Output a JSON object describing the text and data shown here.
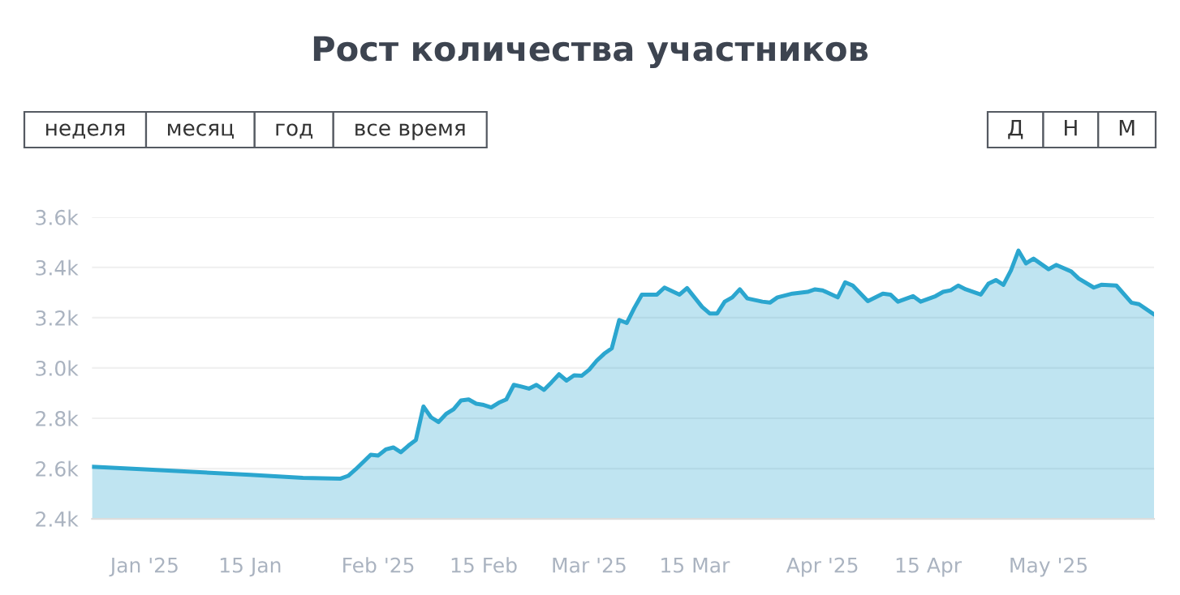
{
  "chart_data": {
    "type": "area",
    "title": "Рост количества участников",
    "annotations": [
      "неделя",
      "месяц",
      "год",
      "все время",
      "Д",
      "Н",
      "М"
    ],
    "x": [
      "2024-12-25",
      "2025-01-01",
      "2025-01-15",
      "2025-01-22",
      "2025-01-27",
      "2025-01-28",
      "2025-01-29",
      "2025-01-31",
      "2025-02-01",
      "2025-02-02",
      "2025-02-03",
      "2025-02-04",
      "2025-02-05",
      "2025-02-06",
      "2025-02-07",
      "2025-02-08",
      "2025-02-09",
      "2025-02-10",
      "2025-02-11",
      "2025-02-12",
      "2025-02-13",
      "2025-02-14",
      "2025-02-15",
      "2025-02-16",
      "2025-02-17",
      "2025-02-18",
      "2025-02-19",
      "2025-02-20",
      "2025-02-21",
      "2025-02-22",
      "2025-02-23",
      "2025-02-24",
      "2025-02-25",
      "2025-02-26",
      "2025-02-27",
      "2025-02-28",
      "2025-03-01",
      "2025-03-02",
      "2025-03-03",
      "2025-03-04",
      "2025-03-05",
      "2025-03-06",
      "2025-03-07",
      "2025-03-08",
      "2025-03-10",
      "2025-03-11",
      "2025-03-13",
      "2025-03-14",
      "2025-03-16",
      "2025-03-17",
      "2025-03-18",
      "2025-03-19",
      "2025-03-20",
      "2025-03-21",
      "2025-03-22",
      "2025-03-24",
      "2025-03-25",
      "2025-03-26",
      "2025-03-28",
      "2025-03-30",
      "2025-03-31",
      "2025-04-01",
      "2025-04-03",
      "2025-04-04",
      "2025-04-05",
      "2025-04-07",
      "2025-04-09",
      "2025-04-10",
      "2025-04-11",
      "2025-04-13",
      "2025-04-14",
      "2025-04-16",
      "2025-04-17",
      "2025-04-18",
      "2025-04-19",
      "2025-04-20",
      "2025-04-22",
      "2025-04-23",
      "2025-04-24",
      "2025-04-25",
      "2025-04-26",
      "2025-04-27",
      "2025-04-28",
      "2025-04-29",
      "2025-05-01",
      "2025-05-02",
      "2025-05-04",
      "2025-05-05",
      "2025-05-07",
      "2025-05-08",
      "2025-05-10",
      "2025-05-12",
      "2025-05-13",
      "2025-05-15"
    ],
    "series": [
      {
        "color": "#2ba6cf",
        "values": [
          2607,
          2597,
          2575,
          2563,
          2560,
          2571,
          2597,
          2655,
          2652,
          2676,
          2684,
          2665,
          2691,
          2714,
          2847,
          2804,
          2785,
          2817,
          2836,
          2871,
          2875,
          2858,
          2853,
          2843,
          2862,
          2875,
          2933,
          2926,
          2918,
          2933,
          2913,
          2943,
          2975,
          2950,
          2971,
          2969,
          2993,
          3029,
          3057,
          3078,
          3191,
          3179,
          3239,
          3292,
          3292,
          3320,
          3292,
          3318,
          3243,
          3217,
          3217,
          3264,
          3281,
          3313,
          3277,
          3264,
          3260,
          3281,
          3296,
          3303,
          3313,
          3309,
          3281,
          3341,
          3328,
          3266,
          3296,
          3292,
          3264,
          3286,
          3264,
          3286,
          3303,
          3309,
          3328,
          3313,
          3292,
          3335,
          3350,
          3331,
          3388,
          3467,
          3416,
          3435,
          3393,
          3410,
          3384,
          3356,
          3320,
          3331,
          3328,
          3260,
          3254,
          3213
        ]
      }
    ],
    "xlim": [
      "2024-12-25",
      "2025-05-15"
    ],
    "xticks": [
      {
        "value": "2025-01-01",
        "label": "Jan '25"
      },
      {
        "value": "2025-01-15",
        "label": "15 Jan"
      },
      {
        "value": "2025-02-01",
        "label": "Feb '25"
      },
      {
        "value": "2025-02-15",
        "label": "15 Feb"
      },
      {
        "value": "2025-03-01",
        "label": "Mar '25"
      },
      {
        "value": "2025-03-15",
        "label": "15 Mar"
      },
      {
        "value": "2025-04-01",
        "label": "Apr '25"
      },
      {
        "value": "2025-04-15",
        "label": "15 Apr"
      },
      {
        "value": "2025-05-01",
        "label": "May '25"
      }
    ],
    "ylim": [
      2400,
      3600
    ],
    "yticks": [
      {
        "value": 2400,
        "label": "2.4k"
      },
      {
        "value": 2600,
        "label": "2.6k"
      },
      {
        "value": 2800,
        "label": "2.8k"
      },
      {
        "value": 3000,
        "label": "3.0k"
      },
      {
        "value": 3200,
        "label": "3.2k"
      },
      {
        "value": 3400,
        "label": "3.4k"
      },
      {
        "value": 3600,
        "label": "3.6k"
      }
    ],
    "grid": "y",
    "legend": false
  }
}
